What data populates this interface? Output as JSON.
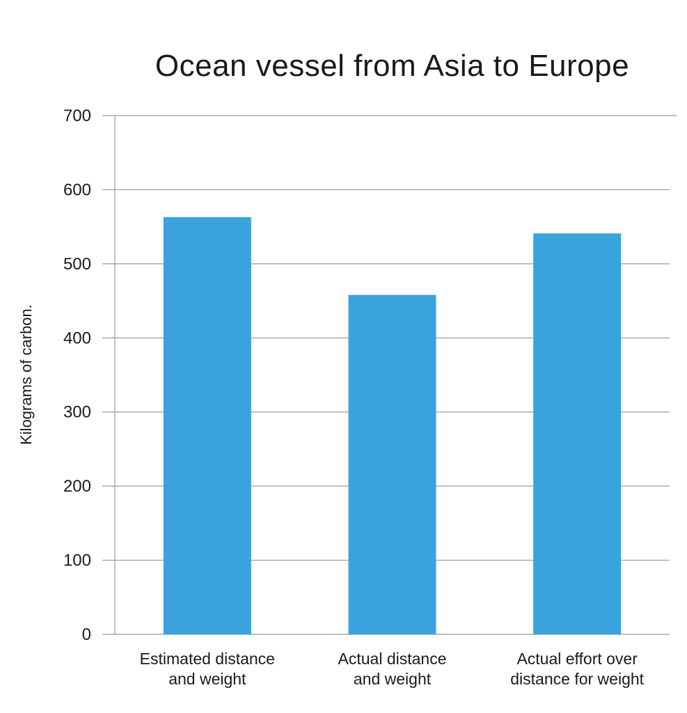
{
  "chart_data": {
    "type": "bar",
    "title": "Ocean vessel from Asia to Europe",
    "ylabel": "Kilograms of carbon.",
    "xlabel": "",
    "categories": [
      [
        "Estimated distance",
        "and weight"
      ],
      [
        "Actual distance",
        "and weight"
      ],
      [
        "Actual effort over",
        "distance for weight"
      ]
    ],
    "values": [
      563,
      458,
      541
    ],
    "ylim": [
      0,
      700
    ],
    "yticks": [
      0,
      100,
      200,
      300,
      400,
      500,
      600,
      700
    ],
    "grid": true,
    "bar_color": "#3AA3DD",
    "grid_color": "#9a9a9a"
  }
}
